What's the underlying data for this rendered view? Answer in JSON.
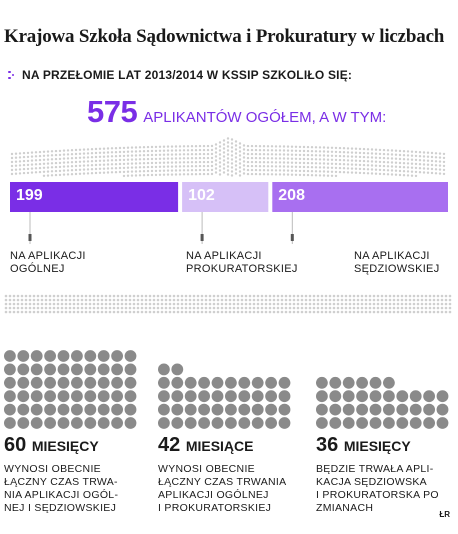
{
  "title": "Krajowa Szkoła Sądownictwa i Prokuratury w liczbach",
  "subtitle": "Na przełomie lat 2013/2014 w KSSiP szkoliło się:",
  "total": {
    "value": "575",
    "label": "aplikantów ogółem, a w tym:"
  },
  "chart_data": {
    "type": "bar",
    "orientation": "horizontal-stacked",
    "title": "Krajowa Szkoła Sądownictwa i Prokuratury w liczbach",
    "total": 575,
    "categories": [
      "Na aplikacji ogólnej",
      "Na aplikacji prokuratorskiej",
      "Na aplikacji sędziowskiej"
    ],
    "values": [
      199,
      102,
      208
    ],
    "labels": [
      {
        "line1": "Na aplikacji",
        "line2": "ogólnej"
      },
      {
        "line1": "Na aplikacji",
        "line2": "prokuratorskiej"
      },
      {
        "line1": "Na aplikacji",
        "line2": "sędziowskiej"
      }
    ],
    "colors": [
      "#7a2ee6",
      "#d6c0f7",
      "#a86ff0"
    ],
    "durations": [
      {
        "value": 60,
        "unit": "miesięcy",
        "desc": "wynosi obecnie\nłączny czas trwa-\nnia aplikacji ogól-\nnej i sędziowskiej"
      },
      {
        "value": 42,
        "unit": "miesiące",
        "desc": "wynosi obecnie\nłączny czas trwania\naplikacji ogólnej\ni prokuratorskiej"
      },
      {
        "value": 36,
        "unit": "miesięcy",
        "desc": "będzie trwała apli-\nkacja sędziowska\ni prokuratorska po\nzmianach"
      }
    ]
  },
  "credit": "ŁR",
  "colors": {
    "accent": "#7a2ee6",
    "dot": "#8a8a8a",
    "dot_light": "#cfcfcf",
    "marker": "#555555"
  }
}
